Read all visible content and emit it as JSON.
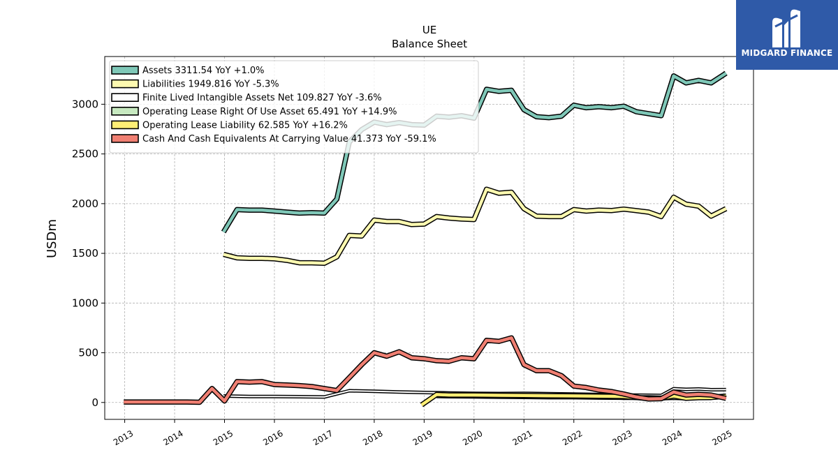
{
  "chart_data": {
    "type": "line",
    "title": "UE",
    "subtitle": "Balance  Sheet",
    "ylabel": "USDm",
    "xlabel": "",
    "xlim": [
      2012.6,
      2025.6
    ],
    "ylim": [
      -170,
      3480
    ],
    "yticks": [
      0,
      500,
      1000,
      1500,
      2000,
      2500,
      3000
    ],
    "xticks": [
      "2013",
      "2014",
      "2015",
      "2016",
      "2017",
      "2018",
      "2019",
      "2020",
      "2021",
      "2022",
      "2023",
      "2024",
      "2025"
    ],
    "grid": true,
    "legend_position": "top-left",
    "series": [
      {
        "name": "Assets  3311.54 YoY +1.0%",
        "color": "#7fc8b8",
        "width": 4.5,
        "points": [
          [
            2014.98,
            1715
          ],
          [
            2015.25,
            1940
          ],
          [
            2015.5,
            1935
          ],
          [
            2015.75,
            1935
          ],
          [
            2016.0,
            1925
          ],
          [
            2016.25,
            1915
          ],
          [
            2016.5,
            1905
          ],
          [
            2016.75,
            1910
          ],
          [
            2017.0,
            1905
          ],
          [
            2017.25,
            2045
          ],
          [
            2017.5,
            2620
          ],
          [
            2017.75,
            2745
          ],
          [
            2018.0,
            2820
          ],
          [
            2018.25,
            2795
          ],
          [
            2018.5,
            2815
          ],
          [
            2018.75,
            2795
          ],
          [
            2019.0,
            2790
          ],
          [
            2019.25,
            2880
          ],
          [
            2019.5,
            2870
          ],
          [
            2019.75,
            2885
          ],
          [
            2020.0,
            2860
          ],
          [
            2020.25,
            3150
          ],
          [
            2020.5,
            3130
          ],
          [
            2020.75,
            3140
          ],
          [
            2021.0,
            2945
          ],
          [
            2021.25,
            2875
          ],
          [
            2021.5,
            2865
          ],
          [
            2021.75,
            2880
          ],
          [
            2022.0,
            2990
          ],
          [
            2022.25,
            2965
          ],
          [
            2022.5,
            2975
          ],
          [
            2022.75,
            2965
          ],
          [
            2023.0,
            2980
          ],
          [
            2023.25,
            2925
          ],
          [
            2023.5,
            2905
          ],
          [
            2023.75,
            2885
          ],
          [
            2024.0,
            3285
          ],
          [
            2024.25,
            3215
          ],
          [
            2024.5,
            3240
          ],
          [
            2024.75,
            3215
          ],
          [
            2025.05,
            3312
          ]
        ]
      },
      {
        "name": "Liabilities  1949.816 YoY -5.3%",
        "color": "#fdf9b0",
        "width": 4.5,
        "points": [
          [
            2014.98,
            1490
          ],
          [
            2015.25,
            1455
          ],
          [
            2015.5,
            1450
          ],
          [
            2015.75,
            1450
          ],
          [
            2016.0,
            1445
          ],
          [
            2016.25,
            1430
          ],
          [
            2016.5,
            1405
          ],
          [
            2016.75,
            1405
          ],
          [
            2017.0,
            1400
          ],
          [
            2017.25,
            1465
          ],
          [
            2017.5,
            1680
          ],
          [
            2017.75,
            1675
          ],
          [
            2018.0,
            1835
          ],
          [
            2018.25,
            1820
          ],
          [
            2018.5,
            1820
          ],
          [
            2018.75,
            1790
          ],
          [
            2019.0,
            1795
          ],
          [
            2019.25,
            1870
          ],
          [
            2019.5,
            1855
          ],
          [
            2019.75,
            1845
          ],
          [
            2020.0,
            1840
          ],
          [
            2020.25,
            2145
          ],
          [
            2020.5,
            2105
          ],
          [
            2020.75,
            2115
          ],
          [
            2021.0,
            1950
          ],
          [
            2021.25,
            1875
          ],
          [
            2021.5,
            1870
          ],
          [
            2021.75,
            1870
          ],
          [
            2022.0,
            1940
          ],
          [
            2022.25,
            1925
          ],
          [
            2022.5,
            1935
          ],
          [
            2022.75,
            1930
          ],
          [
            2023.0,
            1945
          ],
          [
            2023.25,
            1930
          ],
          [
            2023.5,
            1915
          ],
          [
            2023.75,
            1870
          ],
          [
            2024.0,
            2065
          ],
          [
            2024.25,
            1995
          ],
          [
            2024.5,
            1975
          ],
          [
            2024.75,
            1875
          ],
          [
            2025.05,
            1950
          ]
        ]
      },
      {
        "name": "Finite Lived Intangible Assets Net  109.827 YoY -3.6%",
        "color": "#ffffff",
        "width": 2,
        "points": [
          [
            2014.98,
            65
          ],
          [
            2015.5,
            60
          ],
          [
            2016.0,
            60
          ],
          [
            2016.5,
            58
          ],
          [
            2017.0,
            55
          ],
          [
            2017.5,
            118
          ],
          [
            2018.0,
            112
          ],
          [
            2018.5,
            105
          ],
          [
            2019.0,
            100
          ],
          [
            2019.5,
            95
          ],
          [
            2020.0,
            92
          ],
          [
            2020.5,
            90
          ],
          [
            2021.0,
            92
          ],
          [
            2021.5,
            88
          ],
          [
            2022.0,
            85
          ],
          [
            2022.5,
            80
          ],
          [
            2023.0,
            75
          ],
          [
            2023.5,
            72
          ],
          [
            2023.75,
            70
          ],
          [
            2024.0,
            138
          ],
          [
            2024.25,
            132
          ],
          [
            2024.5,
            135
          ],
          [
            2024.75,
            128
          ],
          [
            2025.05,
            129
          ]
        ]
      },
      {
        "name": "Operating Lease Right Of Use Asset  65.491 YoY +14.9%",
        "color": "#c7e9c0",
        "width": 4,
        "points": [
          [
            2019.25,
            68
          ],
          [
            2019.5,
            65
          ],
          [
            2020.0,
            63
          ],
          [
            2020.5,
            60
          ],
          [
            2021.0,
            58
          ],
          [
            2021.5,
            55
          ],
          [
            2022.0,
            55
          ],
          [
            2022.5,
            52
          ],
          [
            2023.0,
            50
          ],
          [
            2023.5,
            48
          ],
          [
            2023.75,
            45
          ],
          [
            2024.0,
            50
          ],
          [
            2024.25,
            45
          ],
          [
            2024.5,
            52
          ],
          [
            2024.75,
            55
          ],
          [
            2025.05,
            65
          ]
        ]
      },
      {
        "name": "Operating Lease Liability  62.585 YoY +16.2%",
        "color": "#ffee75",
        "width": 4.5,
        "points": [
          [
            2018.95,
            -25
          ],
          [
            2019.25,
            80
          ],
          [
            2019.5,
            75
          ],
          [
            2020.0,
            75
          ],
          [
            2020.5,
            72
          ],
          [
            2021.0,
            70
          ],
          [
            2021.5,
            68
          ],
          [
            2022.0,
            66
          ],
          [
            2022.5,
            64
          ],
          [
            2023.0,
            60
          ],
          [
            2023.25,
            50
          ],
          [
            2023.5,
            40
          ],
          [
            2023.75,
            42
          ],
          [
            2024.0,
            65
          ],
          [
            2024.25,
            42
          ],
          [
            2024.5,
            48
          ],
          [
            2024.75,
            50
          ],
          [
            2025.05,
            63
          ]
        ]
      },
      {
        "name": "Cash And Cash Equivalents At Carrying Value  41.373 YoY -59.1%",
        "color": "#f07f72",
        "width": 4.5,
        "points": [
          [
            2012.98,
            5
          ],
          [
            2013.5,
            5
          ],
          [
            2014.0,
            5
          ],
          [
            2014.25,
            5
          ],
          [
            2014.5,
            2
          ],
          [
            2014.75,
            140
          ],
          [
            2015.0,
            15
          ],
          [
            2015.25,
            210
          ],
          [
            2015.5,
            205
          ],
          [
            2015.75,
            210
          ],
          [
            2016.0,
            180
          ],
          [
            2016.25,
            175
          ],
          [
            2016.5,
            170
          ],
          [
            2016.75,
            160
          ],
          [
            2017.0,
            140
          ],
          [
            2017.25,
            120
          ],
          [
            2017.5,
            250
          ],
          [
            2017.75,
            380
          ],
          [
            2018.0,
            500
          ],
          [
            2018.25,
            465
          ],
          [
            2018.5,
            510
          ],
          [
            2018.75,
            450
          ],
          [
            2019.0,
            440
          ],
          [
            2019.25,
            420
          ],
          [
            2019.5,
            415
          ],
          [
            2019.75,
            450
          ],
          [
            2020.0,
            440
          ],
          [
            2020.25,
            625
          ],
          [
            2020.5,
            615
          ],
          [
            2020.75,
            650
          ],
          [
            2021.0,
            380
          ],
          [
            2021.25,
            320
          ],
          [
            2021.5,
            320
          ],
          [
            2021.75,
            270
          ],
          [
            2022.0,
            165
          ],
          [
            2022.25,
            150
          ],
          [
            2022.5,
            125
          ],
          [
            2022.75,
            110
          ],
          [
            2023.0,
            85
          ],
          [
            2023.25,
            55
          ],
          [
            2023.5,
            35
          ],
          [
            2023.75,
            38
          ],
          [
            2024.0,
            105
          ],
          [
            2024.25,
            75
          ],
          [
            2024.5,
            82
          ],
          [
            2024.75,
            75
          ],
          [
            2025.05,
            41
          ]
        ]
      }
    ]
  },
  "logo": {
    "text": "MIDGARD FINANCE",
    "color": "#2f5aa8"
  }
}
